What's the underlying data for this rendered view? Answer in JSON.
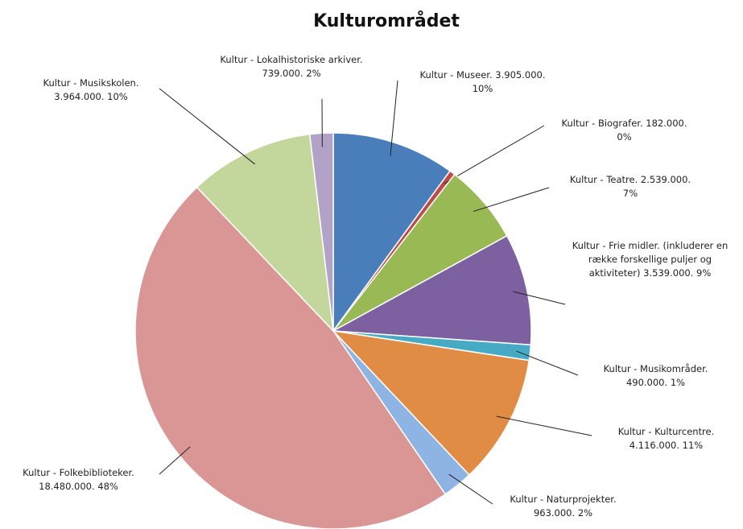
{
  "chart_data": {
    "type": "pie",
    "title": "Kulturområdet",
    "categories": [
      "Kultur - Museer.",
      "Kultur - Biografer.",
      "Kultur - Teatre.",
      "Kultur - Frie midler. (inkluderer en række forskellige puljer og aktiviteter)",
      "Kultur - Musikområder.",
      "Kultur - Kulturcentre.",
      "Kultur - Naturprojekter.",
      "Kultur - Folkebiblioteker.",
      "Kultur - Musikskolen.",
      "Kultur - Lokalhistoriske arkiver."
    ],
    "values": [
      3905000,
      182000,
      2539000,
      3539000,
      490000,
      4116000,
      963000,
      18480000,
      3964000,
      739000
    ],
    "value_labels": [
      "3.905.000.",
      "182.000.",
      "2.539.000.",
      "3.539.000.",
      "490.000.",
      "4.116.000.",
      "963.000.",
      "18.480.000.",
      "3.964.000.",
      "739.000."
    ],
    "percent_labels": [
      "10%",
      "0%",
      "7%",
      "9%",
      "1%",
      "11%",
      "2%",
      "48%",
      "10%",
      "2%"
    ],
    "colors": [
      "#4a7ebb",
      "#be4b48",
      "#98b954",
      "#7d60a0",
      "#46aac5",
      "#e08c45",
      "#8eb4e3",
      "#d99694",
      "#c3d69b",
      "#b3a2c7"
    ]
  }
}
